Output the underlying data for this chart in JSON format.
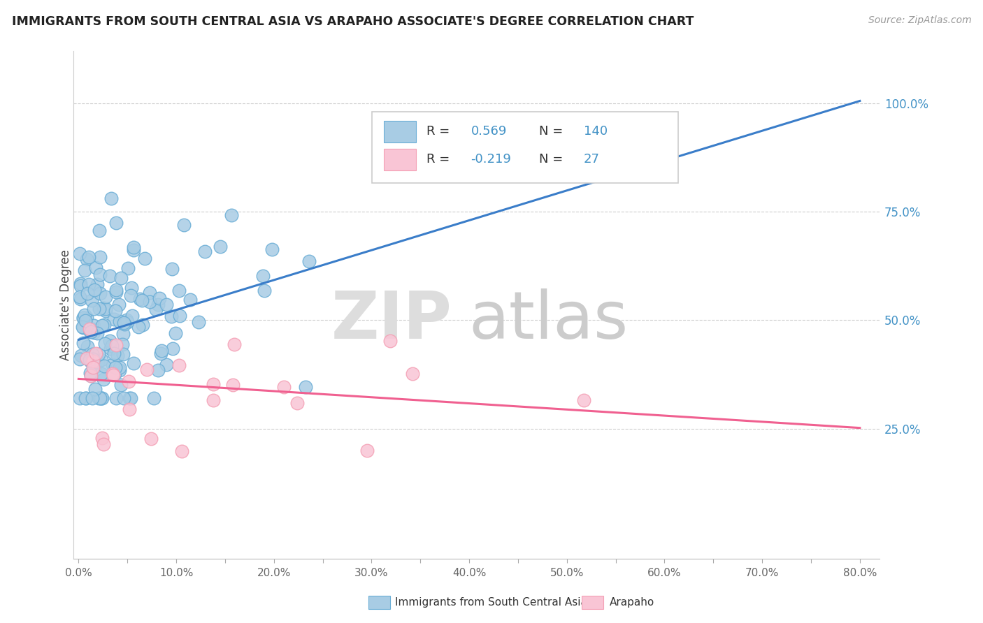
{
  "title": "IMMIGRANTS FROM SOUTH CENTRAL ASIA VS ARAPAHO ASSOCIATE'S DEGREE CORRELATION CHART",
  "source_text": "Source: ZipAtlas.com",
  "ylabel": "Associate's Degree",
  "xlim": [
    -0.005,
    0.82
  ],
  "ylim": [
    -0.05,
    1.12
  ],
  "xtick_labels": [
    "0.0%",
    "",
    "10.0%",
    "",
    "20.0%",
    "",
    "30.0%",
    "",
    "40.0%",
    "",
    "50.0%",
    "",
    "60.0%",
    "",
    "70.0%",
    "",
    "80.0%"
  ],
  "xtick_vals": [
    0.0,
    0.05,
    0.1,
    0.15,
    0.2,
    0.25,
    0.3,
    0.35,
    0.4,
    0.45,
    0.5,
    0.55,
    0.6,
    0.65,
    0.7,
    0.75,
    0.8
  ],
  "ytick_labels": [
    "25.0%",
    "50.0%",
    "75.0%",
    "100.0%"
  ],
  "ytick_vals": [
    0.25,
    0.5,
    0.75,
    1.0
  ],
  "blue_color": "#a8cce4",
  "blue_edge_color": "#6baed6",
  "pink_color": "#f9c5d5",
  "pink_edge_color": "#f4a0b5",
  "blue_line_color": "#3a7dc9",
  "pink_line_color": "#f06090",
  "tick_label_color": "#4292c6",
  "blue_R": "0.569",
  "blue_N": "140",
  "pink_R": "-0.219",
  "pink_N": "27",
  "watermark_zip": "ZIP",
  "watermark_atlas": "atlas",
  "legend_label_blue": "Immigrants from South Central Asia",
  "legend_label_pink": "Arapaho",
  "blue_line_x0": 0.0,
  "blue_line_y0": 0.455,
  "blue_line_x1": 0.8,
  "blue_line_y1": 1.005,
  "pink_line_x0": 0.0,
  "pink_line_y0": 0.365,
  "pink_line_x1": 0.8,
  "pink_line_y1": 0.252
}
